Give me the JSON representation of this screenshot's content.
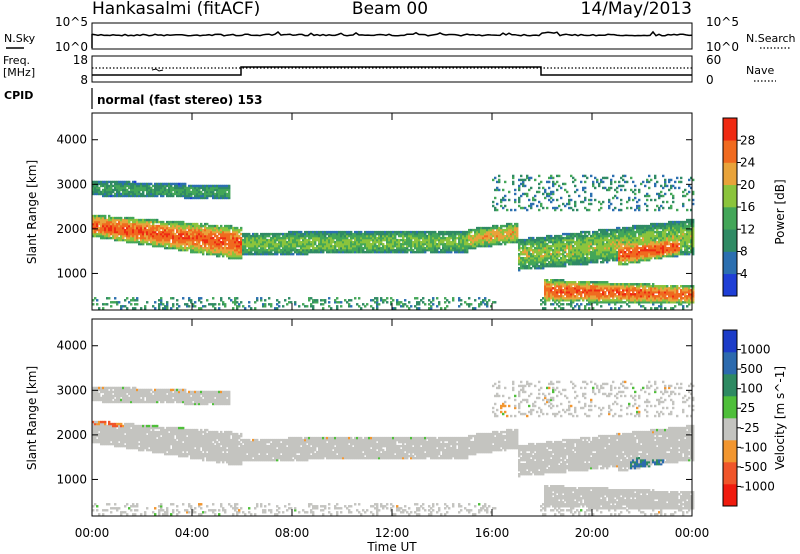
{
  "header": {
    "station": "Hankasalmi (fitACF)",
    "beam": "Beam 00",
    "date": "14/May/2013"
  },
  "noise_panel": {
    "left_label": "N.Sky",
    "right_label": "N.Search",
    "left_ticks": [
      "10^5",
      "10^0"
    ],
    "right_ticks": [
      "10^5",
      "10^0"
    ]
  },
  "freq_panel": {
    "left_label_1": "Freq.",
    "left_label_2": "[MHz]",
    "left_ticks": [
      "18",
      "8"
    ],
    "right_label": "Nave",
    "right_ticks": [
      "60",
      "0"
    ],
    "cpid_label": "CPID",
    "mode_text": "normal (fast stereo) 153"
  },
  "colors": {
    "power": [
      "#1f3fd6",
      "#2b6fb0",
      "#2f8a64",
      "#43a658",
      "#8bc43c",
      "#e8a33a",
      "#f06a1f",
      "#ef2a12"
    ],
    "velocity_neg": [
      "#f01b0e",
      "#f0552a",
      "#f2962f"
    ],
    "velocity_zero": "#c4c4c0",
    "velocity_pos": [
      "#4fbf3a",
      "#2e8a62",
      "#2c6aae",
      "#1c3cc8"
    ]
  },
  "chart_data": [
    {
      "type": "heatmap",
      "name": "power",
      "xlabel": "",
      "ylabel": "Slant Range [km]",
      "x_ticks": [
        "00:00",
        "04:00",
        "08:00",
        "12:00",
        "16:00",
        "20:00",
        "00:00"
      ],
      "xlim_hours": [
        0,
        24
      ],
      "ylim": [
        180,
        4600
      ],
      "y_ticks": [
        1000,
        2000,
        3000,
        4000
      ],
      "colorbar_label": "Power [dB]",
      "colorbar_ticks": [
        4,
        8,
        12,
        16,
        20,
        24,
        28
      ],
      "colorbar_range": [
        0,
        32
      ],
      "bands": [
        {
          "start": 0.0,
          "end": 6.0,
          "center": [
            2050,
            1650
          ],
          "width": [
            500,
            750
          ],
          "level": 27
        },
        {
          "start": 6.0,
          "end": 15.0,
          "center": [
            1650,
            1700
          ],
          "width": [
            500,
            500
          ],
          "level": 17
        },
        {
          "start": 15.0,
          "end": 17.0,
          "center": [
            1750,
            1900
          ],
          "width": [
            450,
            450
          ],
          "level": 22
        },
        {
          "start": 17.0,
          "end": 24.0,
          "center": [
            1400,
            1800
          ],
          "width": [
            700,
            800
          ],
          "level": 18
        },
        {
          "start": 0.0,
          "end": 5.5,
          "center": [
            2900,
            2800
          ],
          "width": [
            350,
            300
          ],
          "level": 13
        },
        {
          "start": 18.0,
          "end": 24.0,
          "center": [
            600,
            500
          ],
          "width": [
            500,
            400
          ],
          "level": 27
        },
        {
          "start": 21.0,
          "end": 23.5,
          "center": [
            1400,
            1600
          ],
          "width": [
            500,
            400
          ],
          "level": 28
        }
      ]
    },
    {
      "type": "heatmap",
      "name": "velocity",
      "xlabel": "Time UT",
      "ylabel": "Slant Range [km]",
      "x_ticks": [
        "00:00",
        "04:00",
        "08:00",
        "12:00",
        "16:00",
        "20:00",
        "00:00"
      ],
      "xlim_hours": [
        0,
        24
      ],
      "ylim": [
        180,
        4600
      ],
      "y_ticks": [
        1000,
        2000,
        3000,
        4000
      ],
      "colorbar_label": "Velocity [m s^-1]",
      "colorbar_ticks": [
        "1000",
        "500",
        "100",
        "25",
        "-25",
        "-100",
        "-500",
        "-1000"
      ],
      "features": [
        {
          "start": 0.0,
          "end": 1.2,
          "center": [
            2400,
            2300
          ],
          "width": [
            350,
            300
          ],
          "velocity": -300
        },
        {
          "start": 2.0,
          "end": 4.3,
          "center": [
            2300,
            2250
          ],
          "width": [
            300,
            250
          ],
          "velocity": 120
        },
        {
          "start": 21.5,
          "end": 22.8,
          "center": [
            1350,
            1300
          ],
          "width": [
            250,
            250
          ],
          "velocity": 700
        },
        {
          "start": 16.3,
          "end": 17.2,
          "center": [
            2500,
            2300
          ],
          "width": [
            500,
            400
          ],
          "velocity": -150
        }
      ]
    }
  ]
}
